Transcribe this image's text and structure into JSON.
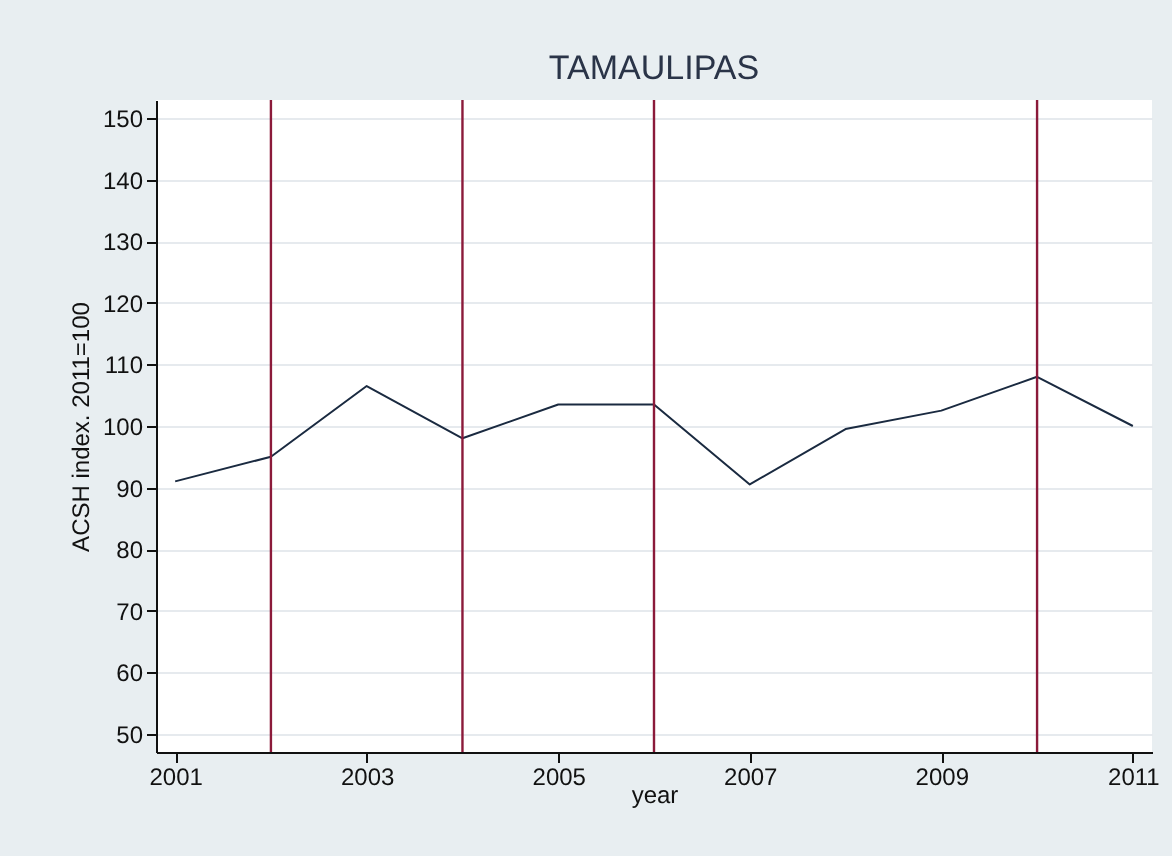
{
  "chart_data": {
    "type": "line",
    "title": "TAMAULIPAS",
    "xlabel": "year",
    "ylabel": "ACSH index. 2011=100",
    "x": [
      2001,
      2002,
      2003,
      2004,
      2005,
      2006,
      2007,
      2008,
      2009,
      2010,
      2011
    ],
    "series": [
      {
        "color": "#1a2a40",
        "values": [
          91,
          95,
          106.5,
          98,
          103.5,
          103.5,
          90.5,
          99.5,
          102.5,
          108,
          100
        ]
      }
    ],
    "xlim": [
      2000.8,
      2011.2
    ],
    "xticks": [
      2001,
      2003,
      2005,
      2007,
      2009,
      2011
    ],
    "ylim": [
      47,
      153
    ],
    "yticks": [
      50,
      60,
      70,
      80,
      90,
      100,
      110,
      120,
      130,
      140,
      150
    ],
    "grid": "y",
    "marker": "none",
    "line_style": "solid",
    "ref_lines": [
      {
        "axis": "x",
        "value": 2002,
        "color": "#8b1a3a"
      },
      {
        "axis": "x",
        "value": 2004,
        "color": "#8b1a3a"
      },
      {
        "axis": "x",
        "value": 2006,
        "color": "#8b1a3a"
      },
      {
        "axis": "x",
        "value": 2010,
        "color": "#8b1a3a"
      }
    ]
  }
}
